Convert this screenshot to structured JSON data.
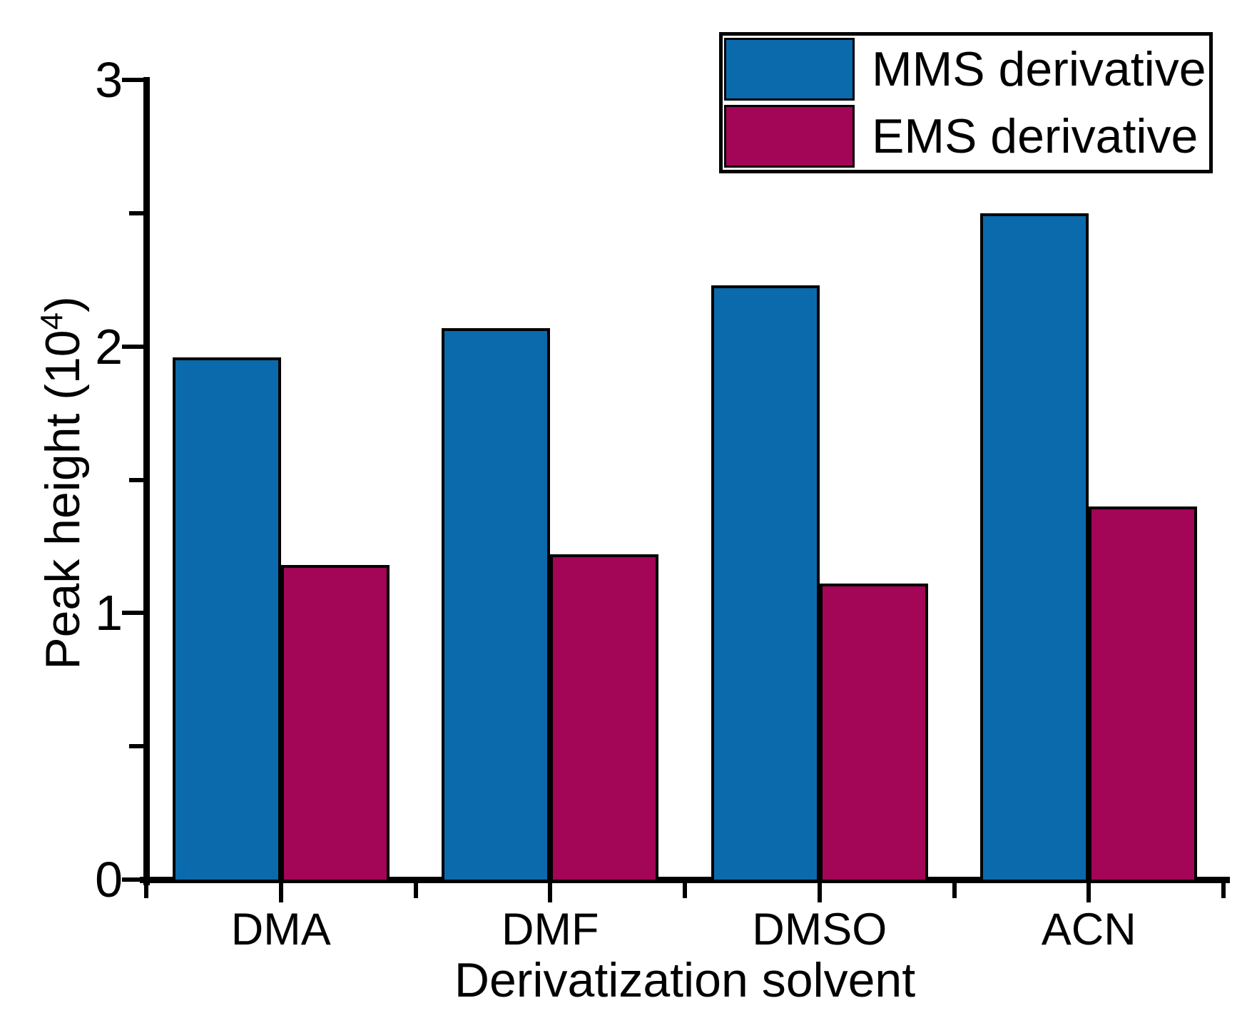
{
  "chart_data": {
    "type": "bar",
    "categories": [
      "DMA",
      "DMF",
      "DMSO",
      "ACN"
    ],
    "series": [
      {
        "name": "MMS derivative",
        "color": "#0b6aab",
        "values": [
          1.96,
          2.07,
          2.23,
          2.5
        ]
      },
      {
        "name": "EMS derivative",
        "color": "#a30557",
        "values": [
          1.18,
          1.22,
          1.11,
          1.4
        ]
      }
    ],
    "title": "",
    "xlabel": "Derivatization solvent",
    "ylabel": "Peak height (10^4)",
    "ylim": [
      0,
      3
    ],
    "y_major_ticks": [
      0,
      1,
      2,
      3
    ],
    "y_minor_ticks": [
      0.5,
      1.5,
      2.5
    ],
    "grid": false,
    "legend_position": "top-right",
    "bar_outline_color": "#000000",
    "axis_color": "#000000"
  },
  "y_axis_title": {
    "prefix": "Peak height (10",
    "sup": "4",
    "suffix": ")"
  }
}
